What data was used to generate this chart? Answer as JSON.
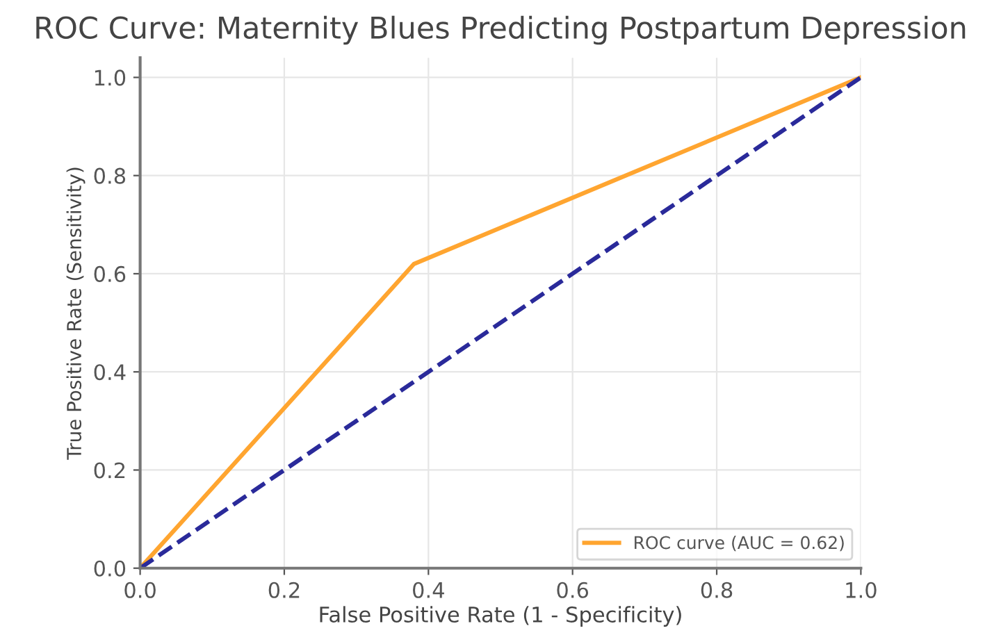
{
  "chart_data": {
    "type": "line",
    "title": "ROC Curve: Maternity Blues Predicting Postpartum Depression",
    "xlabel": "False Positive Rate (1 - Specificity)",
    "ylabel": "True Positive Rate (Sensitivity)",
    "x": [
      0,
      0.38,
      1
    ],
    "series": [
      {
        "name": "ROC curve (AUC = 0.62)",
        "color": "#ffa530",
        "values": [
          0,
          0.62,
          1
        ],
        "line_style": "solid"
      },
      {
        "color": "#2a2a9a",
        "x": [
          0,
          1
        ],
        "values": [
          0,
          1
        ],
        "line_style": "dashed"
      }
    ],
    "xlim": [
      0,
      1
    ],
    "ylim": [
      0,
      1.04
    ],
    "xticks": [
      {
        "value": 0,
        "label": "0.0"
      },
      0.2,
      0.4,
      0.6,
      0.8,
      {
        "value": 1,
        "label": "1.0"
      }
    ],
    "yticks": [
      {
        "value": 0,
        "label": "0.0"
      },
      0.2,
      0.4,
      0.6,
      0.8,
      {
        "value": 1,
        "label": "1.0"
      }
    ],
    "grid": true,
    "legend": "bottom right",
    "marker": "none"
  }
}
